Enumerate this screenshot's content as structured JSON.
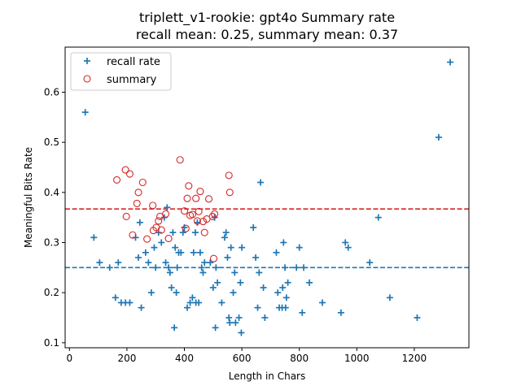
{
  "chart_data": {
    "type": "scatter",
    "title": "triplett_v1-rookie: gpt4o Summary rate",
    "subtitle": "recall mean: 0.25, summary mean: 0.37",
    "xlabel": "Length in Chars",
    "ylabel": "Meaningful Bits Rate",
    "xlim": [
      -15,
      1390
    ],
    "ylim": [
      0.09,
      0.69
    ],
    "xticks": [
      0,
      200,
      400,
      600,
      800,
      1000,
      1200
    ],
    "yticks": [
      0.1,
      0.2,
      0.3,
      0.4,
      0.5,
      0.6
    ],
    "ytick_labels": [
      "0.1",
      "0.2",
      "0.3",
      "0.4",
      "0.5",
      "0.6"
    ],
    "grid": false,
    "legend_position": "top-left",
    "series": [
      {
        "name": "recall rate",
        "marker": "plus",
        "color": "#1f77b4",
        "points": [
          [
            55,
            0.56
          ],
          [
            85,
            0.31
          ],
          [
            105,
            0.26
          ],
          [
            140,
            0.25
          ],
          [
            160,
            0.19
          ],
          [
            170,
            0.26
          ],
          [
            180,
            0.18
          ],
          [
            195,
            0.18
          ],
          [
            210,
            0.18
          ],
          [
            230,
            0.31
          ],
          [
            240,
            0.27
          ],
          [
            245,
            0.34
          ],
          [
            250,
            0.17
          ],
          [
            265,
            0.28
          ],
          [
            275,
            0.26
          ],
          [
            285,
            0.2
          ],
          [
            295,
            0.29
          ],
          [
            300,
            0.25
          ],
          [
            310,
            0.32
          ],
          [
            320,
            0.3
          ],
          [
            330,
            0.35
          ],
          [
            335,
            0.26
          ],
          [
            340,
            0.37
          ],
          [
            345,
            0.25
          ],
          [
            350,
            0.24
          ],
          [
            355,
            0.21
          ],
          [
            360,
            0.32
          ],
          [
            365,
            0.13
          ],
          [
            368,
            0.29
          ],
          [
            372,
            0.2
          ],
          [
            375,
            0.25
          ],
          [
            380,
            0.28
          ],
          [
            388,
            0.28
          ],
          [
            395,
            0.32
          ],
          [
            400,
            0.33
          ],
          [
            410,
            0.17
          ],
          [
            420,
            0.18
          ],
          [
            428,
            0.19
          ],
          [
            432,
            0.28
          ],
          [
            438,
            0.32
          ],
          [
            440,
            0.18
          ],
          [
            445,
            0.34
          ],
          [
            450,
            0.18
          ],
          [
            455,
            0.28
          ],
          [
            460,
            0.25
          ],
          [
            465,
            0.24
          ],
          [
            470,
            0.26
          ],
          [
            490,
            0.26
          ],
          [
            500,
            0.21
          ],
          [
            505,
            0.35
          ],
          [
            508,
            0.13
          ],
          [
            510,
            0.25
          ],
          [
            515,
            0.22
          ],
          [
            530,
            0.18
          ],
          [
            540,
            0.31
          ],
          [
            545,
            0.32
          ],
          [
            550,
            0.27
          ],
          [
            555,
            0.15
          ],
          [
            558,
            0.14
          ],
          [
            562,
            0.29
          ],
          [
            570,
            0.2
          ],
          [
            575,
            0.24
          ],
          [
            578,
            0.14
          ],
          [
            590,
            0.15
          ],
          [
            595,
            0.22
          ],
          [
            598,
            0.12
          ],
          [
            600,
            0.29
          ],
          [
            640,
            0.33
          ],
          [
            648,
            0.27
          ],
          [
            655,
            0.17
          ],
          [
            660,
            0.24
          ],
          [
            665,
            0.42
          ],
          [
            675,
            0.21
          ],
          [
            680,
            0.15
          ],
          [
            720,
            0.28
          ],
          [
            725,
            0.2
          ],
          [
            730,
            0.17
          ],
          [
            740,
            0.17
          ],
          [
            742,
            0.21
          ],
          [
            745,
            0.3
          ],
          [
            750,
            0.25
          ],
          [
            752,
            0.17
          ],
          [
            755,
            0.19
          ],
          [
            760,
            0.22
          ],
          [
            790,
            0.25
          ],
          [
            800,
            0.29
          ],
          [
            810,
            0.16
          ],
          [
            815,
            0.25
          ],
          [
            835,
            0.22
          ],
          [
            880,
            0.18
          ],
          [
            945,
            0.16
          ],
          [
            960,
            0.3
          ],
          [
            970,
            0.29
          ],
          [
            1045,
            0.26
          ],
          [
            1075,
            0.35
          ],
          [
            1115,
            0.19
          ],
          [
            1210,
            0.15
          ],
          [
            1285,
            0.51
          ],
          [
            1325,
            0.66
          ]
        ]
      },
      {
        "name": "summary",
        "marker": "circle",
        "color": "#d62728",
        "points": [
          [
            165,
            0.425
          ],
          [
            195,
            0.445
          ],
          [
            198,
            0.352
          ],
          [
            210,
            0.437
          ],
          [
            220,
            0.315
          ],
          [
            235,
            0.378
          ],
          [
            240,
            0.4
          ],
          [
            255,
            0.42
          ],
          [
            270,
            0.307
          ],
          [
            290,
            0.374
          ],
          [
            292,
            0.324
          ],
          [
            302,
            0.33
          ],
          [
            310,
            0.343
          ],
          [
            315,
            0.352
          ],
          [
            320,
            0.325
          ],
          [
            335,
            0.357
          ],
          [
            345,
            0.308
          ],
          [
            385,
            0.465
          ],
          [
            400,
            0.363
          ],
          [
            405,
            0.328
          ],
          [
            410,
            0.388
          ],
          [
            415,
            0.413
          ],
          [
            420,
            0.354
          ],
          [
            428,
            0.356
          ],
          [
            440,
            0.388
          ],
          [
            445,
            0.343
          ],
          [
            450,
            0.362
          ],
          [
            455,
            0.402
          ],
          [
            465,
            0.342
          ],
          [
            470,
            0.32
          ],
          [
            478,
            0.347
          ],
          [
            485,
            0.387
          ],
          [
            498,
            0.352
          ],
          [
            502,
            0.268
          ],
          [
            505,
            0.357
          ],
          [
            555,
            0.434
          ],
          [
            558,
            0.4
          ]
        ]
      }
    ],
    "reference_lines": [
      {
        "name": "recall mean",
        "y": 0.25,
        "style": "dashed",
        "color": "#1f77b4"
      },
      {
        "name": "summary mean",
        "y": 0.367,
        "style": "dashed",
        "color": "#d62728"
      }
    ]
  }
}
